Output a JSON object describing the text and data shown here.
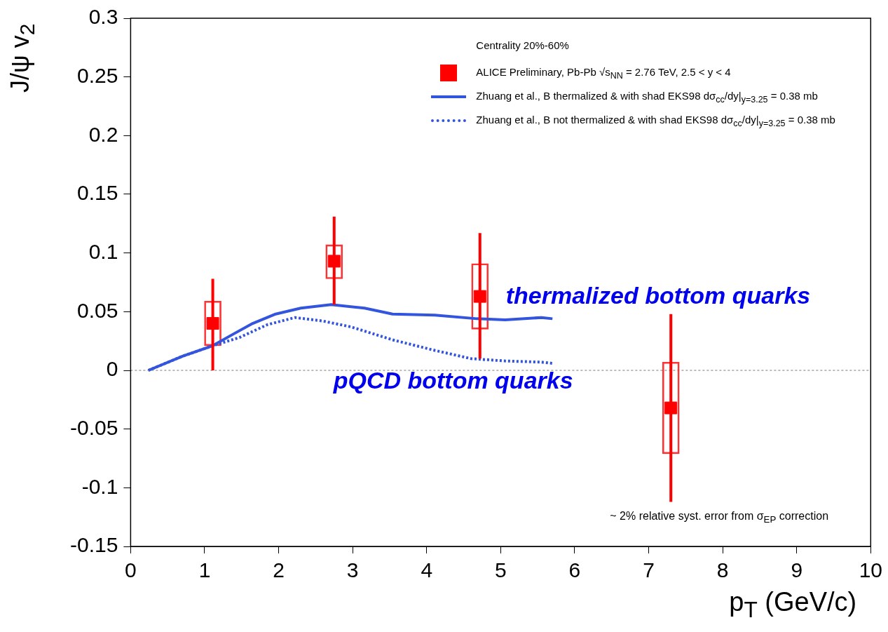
{
  "chart_data": {
    "type": "scatter",
    "xlabel": "p$_{T}$ (GeV/c)",
    "ylabel": "J/ψ v$_{2}$",
    "legend_title": "Centrality 20%-60%",
    "xlim": [
      0,
      10
    ],
    "xticks": [
      0,
      1,
      2,
      3,
      4,
      5,
      6,
      7,
      8,
      9,
      10
    ],
    "ylim": [
      -0.15,
      0.3
    ],
    "yticks": [
      -0.15,
      -0.1,
      -0.05,
      0,
      0.05,
      0.1,
      0.15,
      0.2,
      0.25,
      0.3
    ],
    "legend": "top right",
    "series": [
      {
        "type": "bar",
        "color": "#ff3333",
        "x": [
          1.11,
          2.75,
          4.72,
          7.3
        ],
        "base": [
          0.021,
          0.078,
          0.035,
          -0.071
        ],
        "values": [
          0.038,
          0.029,
          0.056,
          0.078
        ]
      },
      {
        "name": "ALICE Preliminary, Pb-Pb √s$_{NN}$ = 2.76 TeV, 2.5 < y < 4",
        "color": "#ff0000",
        "marker": "square",
        "x": [
          1.11,
          2.75,
          4.72,
          7.3
        ],
        "values": [
          0.04,
          0.093,
          0.063,
          -0.032
        ],
        "errors": [
          [
            0.0,
            0.078
          ],
          [
            0.056,
            0.131
          ],
          [
            0.01,
            0.117
          ],
          [
            -0.112,
            0.048
          ]
        ]
      },
      {
        "type": "line",
        "name": "Zhuang et al., B thermalized & with shad EKS98 dσ$_{cc}$/dy|$_{y=3.25}$ = 0.38 mb",
        "color": "#3355dd",
        "line_style": "solid",
        "marker": "none",
        "x": [
          0.24,
          0.7,
          1.11,
          1.39,
          1.65,
          1.96,
          2.3,
          2.71,
          3.16,
          3.54,
          4.11,
          4.68,
          5.06,
          5.55,
          5.7
        ],
        "values": [
          0.0,
          0.012,
          0.021,
          0.031,
          0.04,
          0.048,
          0.053,
          0.056,
          0.053,
          0.048,
          0.047,
          0.044,
          0.043,
          0.045,
          0.044
        ]
      },
      {
        "type": "line",
        "name": "Zhuang et al., B not thermalized & with shad EKS98 dσ$_{cc}$/dy|$_{y=3.25}$ = 0.38 mb",
        "color": "#3355dd",
        "line_style": "dotted",
        "marker": "none",
        "x": [
          0.24,
          0.7,
          1.11,
          1.47,
          1.85,
          2.22,
          2.6,
          2.98,
          3.54,
          4.11,
          4.6,
          5.06,
          5.55,
          5.7
        ],
        "values": [
          0.0,
          0.012,
          0.021,
          0.028,
          0.039,
          0.045,
          0.042,
          0.037,
          0.026,
          0.017,
          0.01,
          0.008,
          0.007,
          0.006
        ]
      }
    ],
    "ref_lines": [
      {
        "axis": "y",
        "value": 0,
        "color": "#bbbbbb",
        "line_style": "dotted"
      }
    ],
    "annotations": [
      "thermalized bottom quarks",
      "pQCD bottom quarks",
      "~ 2% relative syst. error from σ$_{EP}$ correction"
    ]
  }
}
